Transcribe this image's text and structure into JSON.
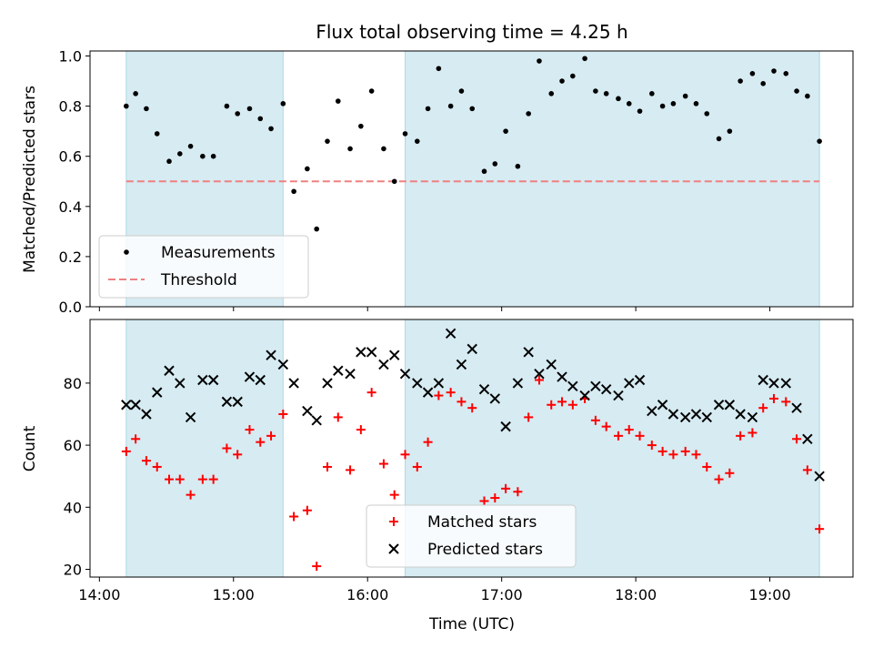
{
  "figure": {
    "title": "Flux total observing time = 4.25 h",
    "xlabel": "Time (UTC)",
    "x_tick_labels": [
      "14:00",
      "15:00",
      "16:00",
      "17:00",
      "18:00",
      "19:00"
    ]
  },
  "colors": {
    "shade": "#add8e6",
    "threshold": "#f08080",
    "measurements": "#000000",
    "matched": "#ff0000",
    "predicted": "#000000"
  },
  "chart_data": [
    {
      "type": "scatter",
      "ylabel": "Matched/Predicted stars",
      "x_unit": "hours UTC",
      "xlim": [
        13.93,
        19.62
      ],
      "ylim": [
        0.0,
        1.02
      ],
      "y_ticks": [
        0.0,
        0.2,
        0.4,
        0.6,
        0.8,
        1.0
      ],
      "y_tick_labels": [
        "0.0",
        "0.2",
        "0.4",
        "0.6",
        "0.8",
        "1.0"
      ],
      "shaded_intervals_hours": [
        [
          14.2,
          15.37
        ],
        [
          16.28,
          19.37
        ]
      ],
      "threshold": 0.5,
      "grid": false,
      "legend_position": "lower-left",
      "legend": [
        "Measurements",
        "Threshold"
      ],
      "series": [
        {
          "name": "Measurements",
          "marker": "dot",
          "x": [
            14.2,
            14.27,
            14.35,
            14.43,
            14.52,
            14.6,
            14.68,
            14.77,
            14.85,
            14.95,
            15.03,
            15.12,
            15.2,
            15.28,
            15.37,
            15.45,
            15.55,
            15.62,
            15.7,
            15.78,
            15.87,
            15.95,
            16.03,
            16.12,
            16.2,
            16.28,
            16.37,
            16.45,
            16.53,
            16.62,
            16.7,
            16.78,
            16.87,
            16.95,
            17.03,
            17.12,
            17.2,
            17.28,
            17.37,
            17.45,
            17.53,
            17.62,
            17.7,
            17.78,
            17.87,
            17.95,
            18.03,
            18.12,
            18.2,
            18.28,
            18.37,
            18.45,
            18.53,
            18.62,
            18.7,
            18.78,
            18.87,
            18.95,
            19.03,
            19.12,
            19.2,
            19.28,
            19.37
          ],
          "y": [
            0.8,
            0.85,
            0.79,
            0.69,
            0.58,
            0.61,
            0.64,
            0.6,
            0.6,
            0.8,
            0.77,
            0.79,
            0.75,
            0.71,
            0.81,
            0.46,
            0.55,
            0.31,
            0.66,
            0.82,
            0.63,
            0.72,
            0.86,
            0.63,
            0.5,
            0.69,
            0.66,
            0.79,
            0.95,
            0.8,
            0.86,
            0.79,
            0.54,
            0.57,
            0.7,
            0.56,
            0.77,
            0.98,
            0.85,
            0.9,
            0.92,
            0.99,
            0.86,
            0.85,
            0.83,
            0.81,
            0.78,
            0.85,
            0.8,
            0.81,
            0.84,
            0.81,
            0.77,
            0.67,
            0.7,
            0.9,
            0.93,
            0.89,
            0.94,
            0.93,
            0.86,
            0.84,
            0.66
          ]
        }
      ]
    },
    {
      "type": "scatter",
      "ylabel": "Count",
      "x_unit": "hours UTC",
      "xlim": [
        13.93,
        19.62
      ],
      "ylim": [
        17.5,
        100.5
      ],
      "y_ticks": [
        20,
        40,
        60,
        80
      ],
      "y_tick_labels": [
        "20",
        "40",
        "60",
        "80"
      ],
      "shaded_intervals_hours": [
        [
          14.2,
          15.37
        ],
        [
          16.28,
          19.37
        ]
      ],
      "grid": false,
      "legend_position": "lower-center",
      "legend": [
        "Matched stars",
        "Predicted stars"
      ],
      "series": [
        {
          "name": "Matched stars",
          "marker": "plus",
          "x": [
            14.2,
            14.27,
            14.35,
            14.43,
            14.52,
            14.6,
            14.68,
            14.77,
            14.85,
            14.95,
            15.03,
            15.12,
            15.2,
            15.28,
            15.37,
            15.45,
            15.55,
            15.62,
            15.7,
            15.78,
            15.87,
            15.95,
            16.03,
            16.12,
            16.2,
            16.28,
            16.37,
            16.45,
            16.53,
            16.62,
            16.7,
            16.78,
            16.87,
            16.95,
            17.03,
            17.12,
            17.2,
            17.28,
            17.37,
            17.45,
            17.53,
            17.62,
            17.7,
            17.78,
            17.87,
            17.95,
            18.03,
            18.12,
            18.2,
            18.28,
            18.37,
            18.45,
            18.53,
            18.62,
            18.7,
            18.78,
            18.87,
            18.95,
            19.03,
            19.12,
            19.2,
            19.28,
            19.37
          ],
          "y": [
            58,
            62,
            55,
            53,
            49,
            49,
            44,
            49,
            49,
            59,
            57,
            65,
            61,
            63,
            70,
            37,
            39,
            21,
            53,
            69,
            52,
            65,
            77,
            54,
            44,
            57,
            53,
            61,
            76,
            77,
            74,
            72,
            42,
            43,
            46,
            45,
            69,
            81,
            73,
            74,
            73,
            75,
            68,
            66,
            63,
            65,
            63,
            60,
            58,
            57,
            58,
            57,
            53,
            49,
            51,
            63,
            64,
            72,
            75,
            74,
            62,
            52,
            33
          ]
        },
        {
          "name": "Predicted stars",
          "marker": "x",
          "x": [
            14.2,
            14.27,
            14.35,
            14.43,
            14.52,
            14.6,
            14.68,
            14.77,
            14.85,
            14.95,
            15.03,
            15.12,
            15.2,
            15.28,
            15.37,
            15.45,
            15.55,
            15.62,
            15.7,
            15.78,
            15.87,
            15.95,
            16.03,
            16.12,
            16.2,
            16.28,
            16.37,
            16.45,
            16.53,
            16.62,
            16.7,
            16.78,
            16.87,
            16.95,
            17.03,
            17.12,
            17.2,
            17.28,
            17.37,
            17.45,
            17.53,
            17.62,
            17.7,
            17.78,
            17.87,
            17.95,
            18.03,
            18.12,
            18.2,
            18.28,
            18.37,
            18.45,
            18.53,
            18.62,
            18.7,
            18.78,
            18.87,
            18.95,
            19.03,
            19.12,
            19.2,
            19.28,
            19.37
          ],
          "y": [
            73,
            73,
            70,
            77,
            84,
            80,
            69,
            81,
            81,
            74,
            74,
            82,
            81,
            89,
            86,
            80,
            71,
            68,
            80,
            84,
            83,
            90,
            90,
            86,
            89,
            83,
            80,
            77,
            80,
            96,
            86,
            91,
            78,
            75,
            66,
            80,
            90,
            83,
            86,
            82,
            79,
            76,
            79,
            78,
            76,
            80,
            81,
            71,
            73,
            70,
            69,
            70,
            69,
            73,
            73,
            70,
            69,
            81,
            80,
            80,
            72,
            62,
            50
          ]
        }
      ]
    }
  ]
}
